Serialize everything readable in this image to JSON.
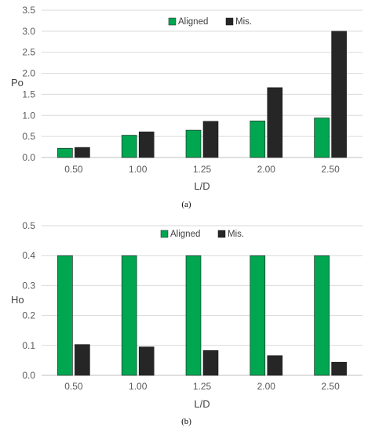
{
  "colors": {
    "aligned": "#00A650",
    "misaligned": "#262626",
    "grid": "#D9D9D9",
    "axis": "#BFBFBF"
  },
  "chart_data": [
    {
      "type": "bar",
      "categories": [
        "0.50",
        "1.00",
        "1.25",
        "2.00",
        "2.50"
      ],
      "series": [
        {
          "name": "Aligned",
          "values": [
            0.22,
            0.53,
            0.65,
            0.87,
            0.94
          ]
        },
        {
          "name": "Mis.",
          "values": [
            0.24,
            0.61,
            0.86,
            1.66,
            3.0
          ]
        }
      ],
      "xlabel": "L/D",
      "ylabel": "Po",
      "ylim": [
        0,
        3.5
      ],
      "yticks": [
        "0.0",
        "0.5",
        "1.0",
        "1.5",
        "2.0",
        "2.5",
        "3.0",
        "3.5"
      ],
      "grid": true,
      "legend": "top-center",
      "caption": "(a)"
    },
    {
      "type": "bar",
      "categories": [
        "0.50",
        "1.00",
        "1.25",
        "2.00",
        "2.50"
      ],
      "series": [
        {
          "name": "Aligned",
          "values": [
            0.4,
            0.4,
            0.4,
            0.4,
            0.4
          ]
        },
        {
          "name": "Mis.",
          "values": [
            0.103,
            0.095,
            0.083,
            0.066,
            0.044
          ]
        }
      ],
      "xlabel": "L/D",
      "ylabel": "Ho",
      "ylim": [
        0,
        0.5
      ],
      "yticks": [
        "0.0",
        "0.1",
        "0.2",
        "0.3",
        "0.4",
        "0.5"
      ],
      "grid": true,
      "legend": "top-center",
      "caption": "(b)"
    }
  ]
}
